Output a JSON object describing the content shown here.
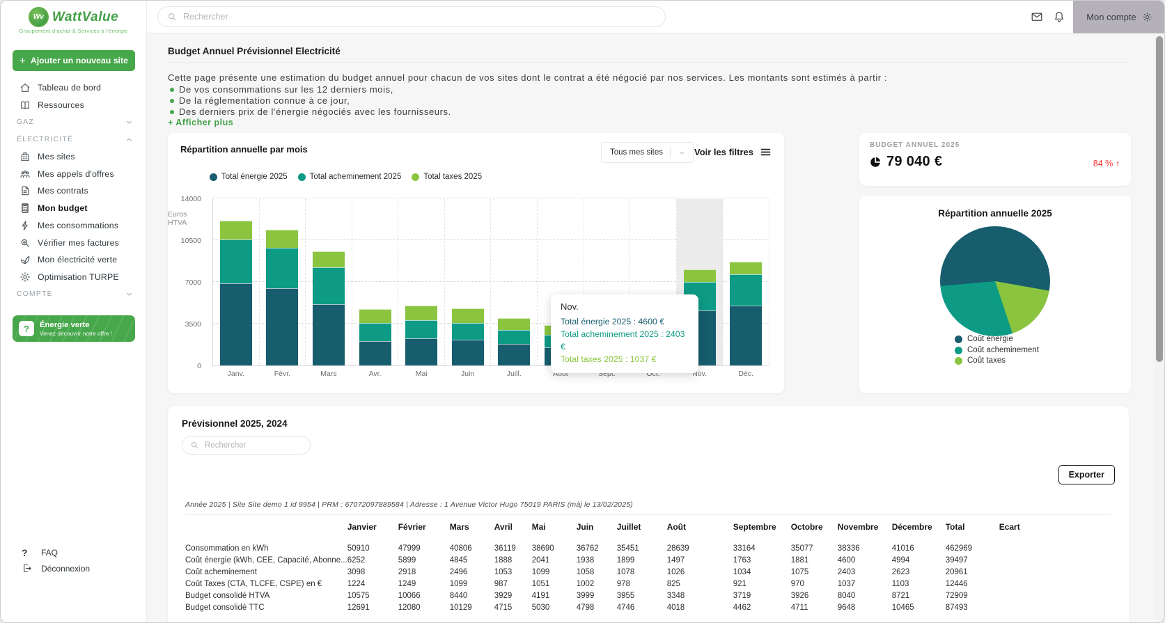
{
  "brand": {
    "name": "WattValue",
    "tagline": "Groupement d'achat & Services à l'énergie"
  },
  "topbar": {
    "search_placeholder": "Rechercher",
    "account_label": "Mon compte"
  },
  "sidebar": {
    "add_site_plus": "+",
    "add_site_label": "Ajouter un nouveau site",
    "nav": [
      {
        "type": "item",
        "label": "Tableau de bord",
        "icon": "home-icon"
      },
      {
        "type": "item",
        "label": "Ressources",
        "icon": "book-icon"
      },
      {
        "type": "section",
        "label": "GAZ",
        "chevron": "down"
      },
      {
        "type": "section",
        "label": "ÉLECTRICITÉ",
        "chevron": "up"
      },
      {
        "type": "item",
        "label": "Mes sites",
        "icon": "sites-icon"
      },
      {
        "type": "item",
        "label": "Mes appels d'offres",
        "icon": "offers-icon"
      },
      {
        "type": "item",
        "label": "Mes contrats",
        "icon": "contracts-icon"
      },
      {
        "type": "item",
        "label": "Mon budget",
        "icon": "budget-icon",
        "active": true
      },
      {
        "type": "item",
        "label": "Mes consommations",
        "icon": "consumption-icon"
      },
      {
        "type": "item",
        "label": "Vérifier mes factures",
        "icon": "invoices-icon"
      },
      {
        "type": "item",
        "label": "Mon électricité verte",
        "icon": "green-electricity-icon"
      },
      {
        "type": "item",
        "label": "Optimisation TURPE",
        "icon": "turpe-gear-icon"
      },
      {
        "type": "section",
        "label": "COMPTE",
        "chevron": "down"
      }
    ],
    "promo": {
      "title": "Énergie verte",
      "subtitle": "Venez découvrir notre offre !"
    },
    "footer": [
      {
        "label": "FAQ",
        "icon": "question-icon"
      },
      {
        "label": "Déconnexion",
        "icon": "logout-icon"
      }
    ]
  },
  "page": {
    "title": "Budget Annuel Prévisionnel Electricité",
    "intro": "Cette page présente une estimation du budget annuel pour chacun de vos sites dont le contrat a été négocié par nos services. Les montants sont estimés à partir :",
    "bullets": [
      "De vos consommations sur les 12 derniers mois,",
      "De la réglementation connue à ce jour,",
      "Des derniers prix de l'énergie négociés avec les fournisseurs."
    ],
    "show_more_label": "+ Afficher plus"
  },
  "chart_card": {
    "site_filter_label": "Tous mes sites",
    "filters_label": "Voir les filtres"
  },
  "chart_data": [
    {
      "type": "bar",
      "stacked": true,
      "title": "Répartition annuelle par mois",
      "ylabel": "Euros HTVA",
      "ylim": [
        0,
        14000
      ],
      "yticks": [
        0,
        3500,
        7000,
        10500,
        14000
      ],
      "grid": true,
      "legend_position": "top-left",
      "categories": [
        "Janv.",
        "Févr.",
        "Mars",
        "Avr.",
        "Mai",
        "Juin",
        "Juill.",
        "Août",
        "Sept.",
        "Oct.",
        "Nov.",
        "Déc."
      ],
      "series": [
        {
          "name": "Total énergie 2025",
          "color": "#175D6D",
          "values": [
            6900,
            6450,
            5150,
            2070,
            2290,
            2140,
            1830,
            1500,
            1800,
            1900,
            4600,
            4994
          ]
        },
        {
          "name": "Total acheminement 2025",
          "color": "#0D9B85",
          "values": [
            3650,
            3430,
            3090,
            1470,
            1500,
            1400,
            1150,
            1040,
            1050,
            1100,
            2403,
            2623
          ]
        },
        {
          "name": "Total taxes 2025",
          "color": "#8BC540",
          "values": [
            1600,
            1500,
            1340,
            1170,
            1210,
            1230,
            1000,
            850,
            950,
            1000,
            1037,
            1103
          ]
        }
      ],
      "highlighted_category": "Nov.",
      "tooltip": {
        "title": "Nov.",
        "lines": [
          "Total énergie 2025 : 4600 €",
          "Total acheminement 2025 : 2403 €",
          "Total taxes 2025 : 1037 €"
        ]
      }
    },
    {
      "type": "pie",
      "title": "Répartition annuelle 2025",
      "labels": [
        "Coût énergie",
        "Coût acheminement",
        "Coût taxes"
      ],
      "values": [
        39497,
        20961,
        12446
      ],
      "colors": [
        "#175D6D",
        "#0D9B85",
        "#8BC540"
      ],
      "start_angle_deg": 265,
      "clockwise_order": [
        0,
        2,
        1
      ],
      "legend_position": "bottom"
    }
  ],
  "budget_card": {
    "label": "BUDGET ANNUEL 2025",
    "value": "79 040 €",
    "delta": "84 %",
    "delta_arrow": "↑"
  },
  "table_card": {
    "title": "Prévisionnel 2025, 2024",
    "search_placeholder": "Rechercher",
    "export_label": "Exporter",
    "meta": "Année 2025 | Site Site demo 1 id 9954 | PRM : 67072097889584 | Adresse : 1 Avenue Victor Hugo 75019 PARIS (màj le 13/02/2025)",
    "scroll_hint": "▼",
    "columns": [
      "",
      "Janvier",
      "Février",
      "Mars",
      "Avril",
      "Mai",
      "Juin",
      "Juillet",
      "Août",
      "Septembre",
      "Octobre",
      "Novembre",
      "Décembre",
      "Total",
      "Ecart"
    ],
    "rows": [
      {
        "label": "Consommation en kWh",
        "values": [
          "50910",
          "47999",
          "40806",
          "36119",
          "38690",
          "36762",
          "35451",
          "28639",
          "33164",
          "35077",
          "38336",
          "41016",
          "462969",
          ""
        ]
      },
      {
        "label": "Coût énergie (kWh, CEE, Capacité, Abonne...",
        "values": [
          "6252",
          "5899",
          "4845",
          "1888",
          "2041",
          "1938",
          "1899",
          "1497",
          "1763",
          "1881",
          "4600",
          "4994",
          "39497",
          ""
        ]
      },
      {
        "label": "Coût acheminement",
        "values": [
          "3098",
          "2918",
          "2496",
          "1053",
          "1099",
          "1058",
          "1078",
          "1026",
          "1034",
          "1075",
          "2403",
          "2623",
          "20961",
          ""
        ]
      },
      {
        "label": "Coût Taxes (CTA, TLCFE, CSPE) en €",
        "values": [
          "1224",
          "1249",
          "1099",
          "987",
          "1051",
          "1002",
          "978",
          "825",
          "921",
          "970",
          "1037",
          "1103",
          "12446",
          ""
        ]
      },
      {
        "label": "Budget consolidé HTVA",
        "values": [
          "10575",
          "10066",
          "8440",
          "3929",
          "4191",
          "3999",
          "3955",
          "3348",
          "3719",
          "3926",
          "8040",
          "8721",
          "72909",
          ""
        ]
      },
      {
        "label": "Budget consolidé TTC",
        "values": [
          "12691",
          "12080",
          "10129",
          "4715",
          "5030",
          "4798",
          "4746",
          "4018",
          "4462",
          "4711",
          "9648",
          "10465",
          "87493",
          ""
        ]
      }
    ]
  },
  "colors": {
    "brand_green": "#47A74B",
    "accent_green_text": "#43A047",
    "energy_teal_dark": "#175D6D",
    "transport_teal": "#0D9B85",
    "taxes_green": "#8BC540",
    "alert_red": "#F53030",
    "account_bg": "#B4B2B8"
  }
}
